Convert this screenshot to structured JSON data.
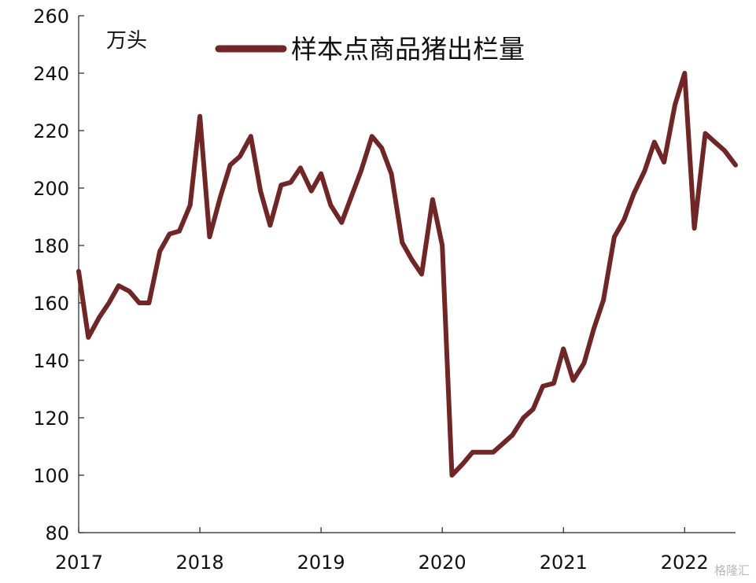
{
  "chart_data": {
    "type": "line",
    "unit": "万头",
    "series": [
      {
        "name": "样本点商品猪出栏量",
        "color": "#722525",
        "x": [
          2017.0,
          2017.08,
          2017.17,
          2017.25,
          2017.33,
          2017.42,
          2017.5,
          2017.58,
          2017.67,
          2017.75,
          2017.83,
          2017.92,
          2018.0,
          2018.08,
          2018.17,
          2018.25,
          2018.33,
          2018.42,
          2018.5,
          2018.58,
          2018.67,
          2018.75,
          2018.83,
          2018.92,
          2019.0,
          2019.08,
          2019.17,
          2019.25,
          2019.33,
          2019.42,
          2019.5,
          2019.58,
          2019.67,
          2019.75,
          2019.83,
          2019.92,
          2020.0,
          2020.08,
          2020.17,
          2020.25,
          2020.33,
          2020.42,
          2020.5,
          2020.58,
          2020.67,
          2020.75,
          2020.83,
          2020.92,
          2021.0,
          2021.08,
          2021.17,
          2021.25,
          2021.33,
          2021.42,
          2021.5,
          2021.58,
          2021.67,
          2021.75,
          2021.83,
          2021.92,
          2022.0,
          2022.08,
          2022.17,
          2022.25,
          2022.33,
          2022.42
        ],
        "values": [
          171,
          148,
          155,
          160,
          166,
          164,
          160,
          160,
          178,
          184,
          185,
          194,
          225,
          183,
          197,
          208,
          211,
          218,
          199,
          187,
          201,
          202,
          207,
          199,
          205,
          194,
          188,
          197,
          206,
          218,
          214,
          205,
          181,
          175,
          170,
          196,
          180,
          100,
          104,
          108,
          108,
          108,
          111,
          114,
          120,
          123,
          131,
          132,
          144,
          133,
          139,
          151,
          161,
          183,
          189,
          198,
          206,
          216,
          209,
          229,
          240,
          186,
          219,
          216,
          213,
          208
        ]
      }
    ],
    "x_tick_labels": [
      "2017",
      "2018",
      "2019",
      "2020",
      "2021",
      "2022"
    ],
    "x_ticks": [
      2017,
      2018,
      2019,
      2020,
      2021,
      2022
    ],
    "xlim": [
      2017.0,
      2022.42
    ],
    "y_tick_labels": [
      "80",
      "100",
      "120",
      "140",
      "160",
      "180",
      "200",
      "220",
      "240",
      "260"
    ],
    "y_ticks": [
      80,
      100,
      120,
      140,
      160,
      180,
      200,
      220,
      240,
      260
    ],
    "ylim": [
      80,
      260
    ],
    "grid": false,
    "legend_position": "top-center"
  },
  "watermark": "格隆汇"
}
